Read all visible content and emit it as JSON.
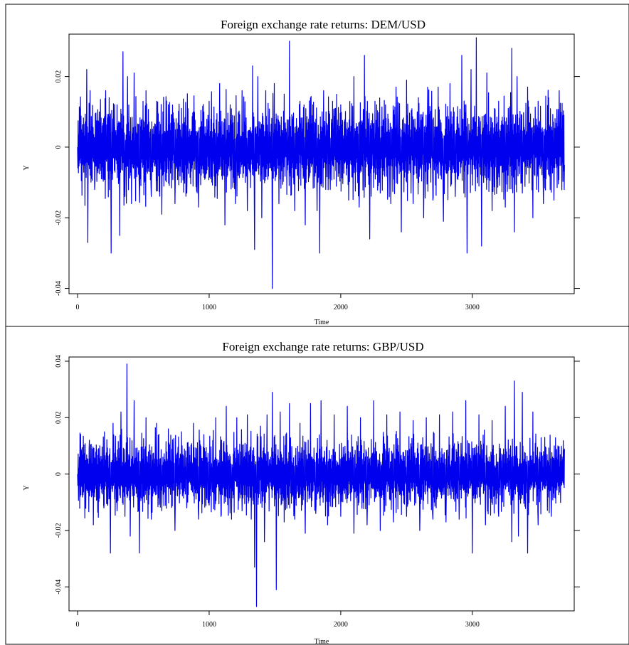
{
  "chart_data": [
    {
      "type": "line",
      "title": "Foreign exchange rate returns: DEM/USD",
      "xlabel": "Time",
      "ylabel": "Y",
      "xlim": [
        0,
        3720
      ],
      "ylim": [
        -0.0415,
        0.032
      ],
      "x_ticks": [
        0,
        1000,
        2000,
        3000
      ],
      "x_tick_labels": [
        "0",
        "1000",
        "2000",
        "3000"
      ],
      "y_ticks": [
        -0.04,
        -0.02,
        0,
        0.02
      ],
      "y_tick_labels": [
        "-0.04",
        "-0.02",
        "0",
        "0.02"
      ],
      "grid": false,
      "color": "#0000ee",
      "series": [
        {
          "x": [
            0,
            40,
            70,
            78,
            95,
            130,
            165,
            200,
            240,
            255,
            300,
            320,
            345,
            360,
            380,
            410,
            430,
            470,
            520,
            560,
            600,
            640,
            690,
            740,
            790,
            830,
            880,
            920,
            960,
            1000,
            1050,
            1080,
            1120,
            1160,
            1200,
            1250,
            1290,
            1330,
            1345,
            1370,
            1400,
            1430,
            1480,
            1495,
            1530,
            1570,
            1610,
            1650,
            1690,
            1730,
            1770,
            1820,
            1840,
            1870,
            1920,
            1960,
            2000,
            2060,
            2100,
            2140,
            2180,
            2220,
            2260,
            2300,
            2340,
            2380,
            2420,
            2460,
            2500,
            2550,
            2590,
            2630,
            2660,
            2700,
            2740,
            2780,
            2830,
            2870,
            2920,
            2960,
            2990,
            3030,
            3070,
            3110,
            3150,
            3200,
            3250,
            3300,
            3320,
            3340,
            3380,
            3420,
            3460,
            3500,
            3540,
            3580,
            3620,
            3660,
            3700
          ],
          "y": [
            0.0,
            0.004,
            0.022,
            -0.027,
            0.016,
            -0.012,
            0.01,
            -0.008,
            0.014,
            -0.03,
            0.012,
            -0.025,
            0.027,
            -0.014,
            0.02,
            -0.016,
            0.021,
            -0.012,
            0.016,
            -0.014,
            0.013,
            -0.019,
            0.012,
            -0.016,
            0.011,
            -0.013,
            0.01,
            -0.017,
            0.01,
            0.013,
            -0.011,
            0.018,
            -0.022,
            0.012,
            -0.016,
            0.016,
            -0.018,
            0.023,
            -0.029,
            0.02,
            -0.02,
            0.016,
            -0.04,
            0.018,
            -0.016,
            0.015,
            0.03,
            -0.018,
            0.013,
            -0.022,
            0.014,
            -0.018,
            -0.03,
            0.016,
            -0.012,
            0.011,
            0.012,
            -0.015,
            0.02,
            -0.017,
            0.026,
            -0.026,
            0.013,
            -0.013,
            0.012,
            -0.016,
            0.017,
            -0.024,
            0.019,
            -0.016,
            0.014,
            -0.02,
            0.017,
            -0.015,
            0.017,
            -0.021,
            0.018,
            -0.014,
            0.026,
            -0.03,
            0.022,
            0.031,
            -0.028,
            0.021,
            -0.018,
            0.013,
            -0.017,
            0.028,
            -0.024,
            0.02,
            -0.013,
            0.017,
            -0.02,
            0.013,
            -0.016,
            0.014,
            -0.015,
            0.016,
            -0.005
          ]
        }
      ]
    },
    {
      "type": "line",
      "title": "Foreign exchange rate returns: GBP/USD",
      "xlabel": "Time",
      "ylabel": "Y",
      "xlim": [
        0,
        3720
      ],
      "ylim": [
        -0.0485,
        0.0415
      ],
      "x_ticks": [
        0,
        1000,
        2000,
        3000
      ],
      "x_tick_labels": [
        "0",
        "1000",
        "2000",
        "3000"
      ],
      "y_ticks": [
        -0.04,
        -0.02,
        0,
        0.02,
        0.04
      ],
      "y_tick_labels": [
        "-0.04",
        "-0.02",
        "0",
        "0.02",
        "0.04"
      ],
      "grid": false,
      "color": "#0000ee",
      "series": [
        {
          "x": [
            0,
            30,
            60,
            90,
            120,
            160,
            200,
            250,
            270,
            300,
            330,
            360,
            375,
            400,
            430,
            470,
            520,
            560,
            600,
            640,
            690,
            740,
            790,
            830,
            880,
            920,
            960,
            1000,
            1050,
            1090,
            1130,
            1170,
            1210,
            1250,
            1290,
            1320,
            1345,
            1360,
            1390,
            1420,
            1440,
            1480,
            1510,
            1540,
            1570,
            1610,
            1650,
            1690,
            1730,
            1770,
            1810,
            1850,
            1900,
            1950,
            2000,
            2050,
            2100,
            2150,
            2200,
            2250,
            2300,
            2350,
            2400,
            2450,
            2500,
            2550,
            2600,
            2650,
            2700,
            2750,
            2800,
            2850,
            2900,
            2950,
            3000,
            3050,
            3100,
            3150,
            3200,
            3250,
            3300,
            3320,
            3350,
            3380,
            3420,
            3460,
            3500,
            3550,
            3600,
            3650,
            3700
          ],
          "y": [
            0.0,
            0.004,
            -0.012,
            0.012,
            -0.018,
            0.009,
            -0.012,
            -0.028,
            0.018,
            -0.013,
            0.022,
            -0.015,
            0.039,
            -0.022,
            0.026,
            -0.028,
            0.02,
            -0.016,
            0.018,
            -0.013,
            0.016,
            -0.02,
            0.015,
            -0.012,
            0.018,
            -0.016,
            0.014,
            -0.011,
            0.02,
            -0.015,
            0.024,
            -0.016,
            0.02,
            -0.013,
            0.021,
            -0.016,
            -0.033,
            -0.047,
            0.017,
            -0.024,
            0.021,
            0.029,
            -0.041,
            0.022,
            -0.017,
            0.025,
            -0.016,
            0.018,
            -0.021,
            0.025,
            -0.014,
            0.026,
            -0.018,
            0.021,
            -0.015,
            0.024,
            -0.021,
            0.02,
            -0.018,
            0.026,
            -0.02,
            0.021,
            -0.017,
            0.022,
            -0.015,
            0.019,
            -0.02,
            0.02,
            -0.016,
            0.021,
            -0.017,
            0.022,
            -0.016,
            0.026,
            -0.028,
            0.021,
            -0.018,
            0.019,
            -0.015,
            0.024,
            -0.024,
            0.033,
            -0.022,
            0.029,
            -0.028,
            0.022,
            -0.018,
            0.013,
            -0.015,
            0.01,
            0.009
          ]
        }
      ]
    }
  ]
}
